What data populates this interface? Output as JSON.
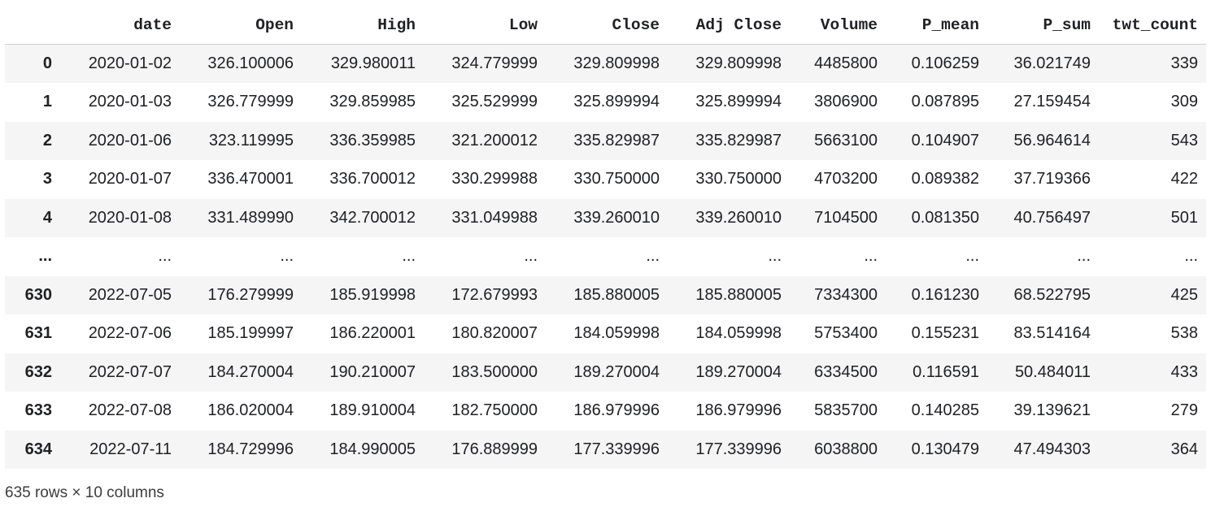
{
  "table": {
    "columns": [
      "",
      "date",
      "Open",
      "High",
      "Low",
      "Close",
      "Adj Close",
      "Volume",
      "P_mean",
      "P_sum",
      "twt_count"
    ],
    "rows": [
      [
        "0",
        "2020-01-02",
        "326.100006",
        "329.980011",
        "324.779999",
        "329.809998",
        "329.809998",
        "4485800",
        "0.106259",
        "36.021749",
        "339"
      ],
      [
        "1",
        "2020-01-03",
        "326.779999",
        "329.859985",
        "325.529999",
        "325.899994",
        "325.899994",
        "3806900",
        "0.087895",
        "27.159454",
        "309"
      ],
      [
        "2",
        "2020-01-06",
        "323.119995",
        "336.359985",
        "321.200012",
        "335.829987",
        "335.829987",
        "5663100",
        "0.104907",
        "56.964614",
        "543"
      ],
      [
        "3",
        "2020-01-07",
        "336.470001",
        "336.700012",
        "330.299988",
        "330.750000",
        "330.750000",
        "4703200",
        "0.089382",
        "37.719366",
        "422"
      ],
      [
        "4",
        "2020-01-08",
        "331.489990",
        "342.700012",
        "331.049988",
        "339.260010",
        "339.260010",
        "7104500",
        "0.081350",
        "40.756497",
        "501"
      ],
      [
        "...",
        "...",
        "...",
        "...",
        "...",
        "...",
        "...",
        "...",
        "...",
        "...",
        "..."
      ],
      [
        "630",
        "2022-07-05",
        "176.279999",
        "185.919998",
        "172.679993",
        "185.880005",
        "185.880005",
        "7334300",
        "0.161230",
        "68.522795",
        "425"
      ],
      [
        "631",
        "2022-07-06",
        "185.199997",
        "186.220001",
        "180.820007",
        "184.059998",
        "184.059998",
        "5753400",
        "0.155231",
        "83.514164",
        "538"
      ],
      [
        "632",
        "2022-07-07",
        "184.270004",
        "190.210007",
        "183.500000",
        "189.270004",
        "189.270004",
        "6334500",
        "0.116591",
        "50.484011",
        "433"
      ],
      [
        "633",
        "2022-07-08",
        "186.020004",
        "189.910004",
        "182.750000",
        "186.979996",
        "186.979996",
        "5835700",
        "0.140285",
        "39.139621",
        "279"
      ],
      [
        "634",
        "2022-07-11",
        "184.729996",
        "184.990005",
        "176.889999",
        "177.339996",
        "177.339996",
        "6038800",
        "0.130479",
        "47.494303",
        "364"
      ]
    ]
  },
  "footer": {
    "shape_text": "635 rows × 10 columns"
  }
}
